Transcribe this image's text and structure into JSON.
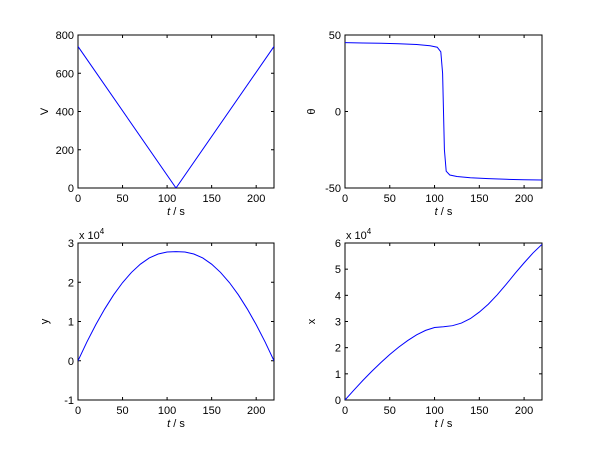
{
  "colors": {
    "line": "#0000ff",
    "axes": "#000000",
    "background": "#ffffff"
  },
  "chart_data": [
    {
      "type": "line",
      "panel": "top-left",
      "xlabel_var": "t",
      "xlabel_unit": " / s",
      "ylabel": "V",
      "xlim": [
        0,
        220
      ],
      "ylim": [
        0,
        800
      ],
      "xticks": [
        0,
        50,
        100,
        150,
        200
      ],
      "yticks": [
        0,
        200,
        400,
        600,
        800
      ],
      "exponent_label": null,
      "grid": false,
      "series": [
        {
          "x": [
            0,
            110,
            220
          ],
          "y": [
            740,
            0,
            740
          ]
        }
      ]
    },
    {
      "type": "line",
      "panel": "top-right",
      "xlabel_var": "t",
      "xlabel_unit": " / s",
      "ylabel": "θ",
      "xlim": [
        0,
        220
      ],
      "ylim": [
        -50,
        50
      ],
      "xticks": [
        0,
        50,
        100,
        150,
        200
      ],
      "yticks": [
        -50,
        0,
        50
      ],
      "exponent_label": null,
      "grid": false,
      "series": [
        {
          "x": [
            0,
            20,
            40,
            60,
            80,
            95,
            103,
            107,
            109,
            110,
            111,
            113,
            117,
            125,
            140,
            160,
            180,
            200,
            220
          ],
          "y": [
            45,
            44.8,
            44.6,
            44.3,
            43.8,
            43,
            42,
            39,
            25,
            0,
            -25,
            -39,
            -41.5,
            -42.5,
            -43.3,
            -43.9,
            -44.3,
            -44.6,
            -44.8
          ]
        }
      ]
    },
    {
      "type": "line",
      "panel": "bottom-left",
      "xlabel_var": "t",
      "xlabel_unit": " / s",
      "ylabel": "y",
      "xlim": [
        0,
        220
      ],
      "ylim": [
        -1,
        3
      ],
      "xticks": [
        0,
        50,
        100,
        150,
        200
      ],
      "yticks": [
        -1,
        0,
        1,
        2,
        3
      ],
      "exponent_label": {
        "base": "x 10",
        "power": "4"
      },
      "grid": false,
      "series": [
        {
          "x": [
            0,
            10,
            20,
            30,
            40,
            50,
            60,
            70,
            80,
            90,
            100,
            110,
            120,
            130,
            140,
            150,
            160,
            170,
            180,
            190,
            200,
            210,
            220
          ],
          "y": [
            0,
            0.48,
            0.92,
            1.32,
            1.68,
            1.99,
            2.25,
            2.46,
            2.62,
            2.72,
            2.77,
            2.78,
            2.77,
            2.72,
            2.62,
            2.46,
            2.25,
            1.99,
            1.68,
            1.32,
            0.92,
            0.48,
            0
          ]
        }
      ]
    },
    {
      "type": "line",
      "panel": "bottom-right",
      "xlabel_var": "t",
      "xlabel_unit": " / s",
      "ylabel": "x",
      "xlim": [
        0,
        220
      ],
      "ylim": [
        0,
        6
      ],
      "xticks": [
        0,
        50,
        100,
        150,
        200
      ],
      "yticks": [
        0,
        1,
        2,
        3,
        4,
        5,
        6
      ],
      "exponent_label": {
        "base": "x 10",
        "power": "4"
      },
      "grid": false,
      "series": [
        {
          "x": [
            0,
            10,
            20,
            30,
            40,
            50,
            60,
            70,
            80,
            90,
            100,
            110,
            120,
            130,
            140,
            150,
            160,
            170,
            180,
            190,
            200,
            210,
            220
          ],
          "y": [
            0,
            0.38,
            0.75,
            1.1,
            1.43,
            1.74,
            2.02,
            2.27,
            2.49,
            2.66,
            2.77,
            2.8,
            2.84,
            2.94,
            3.11,
            3.36,
            3.66,
            4.02,
            4.42,
            4.84,
            5.24,
            5.62,
            5.95
          ]
        }
      ]
    }
  ]
}
